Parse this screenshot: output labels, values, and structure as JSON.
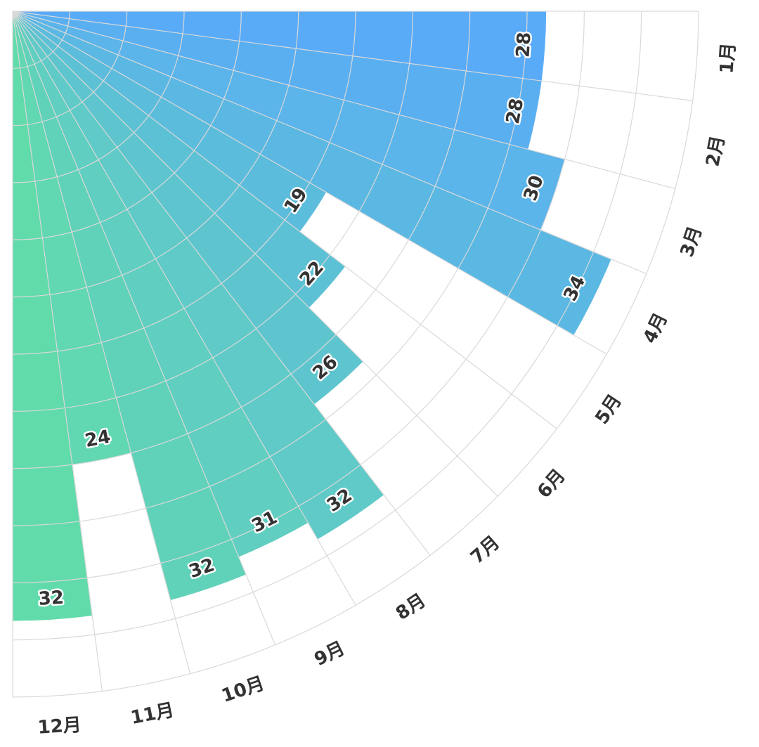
{
  "chart_data": {
    "type": "bar",
    "polar": true,
    "categories": [
      "1月",
      "2月",
      "3月",
      "4月",
      "5月",
      "6月",
      "7月",
      "8月",
      "9月",
      "10月",
      "11月",
      "12月"
    ],
    "values": [
      28,
      28,
      30,
      34,
      19,
      22,
      26,
      32,
      31,
      32,
      24,
      32
    ],
    "radial_range": [
      0,
      36
    ],
    "radial_grid_divisions": 12,
    "gradient": {
      "start": "#59abf8",
      "end": "#62dbab"
    },
    "grid_color": "#d9d9d9",
    "label_color": "#333333"
  }
}
